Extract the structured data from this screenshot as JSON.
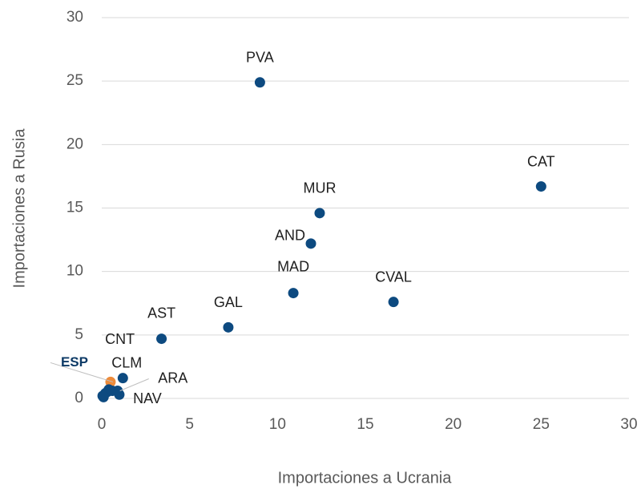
{
  "chart_data": {
    "type": "scatter",
    "x_label": "Importaciones a Ucrania",
    "y_label": "Importaciones a Rusia",
    "x": [
      9.0,
      25.0,
      12.4,
      11.9,
      10.9,
      16.6,
      7.2,
      3.4,
      0.3,
      1.2,
      0.5,
      0.9,
      1.0,
      0.1,
      0.2,
      0.4,
      0.6,
      0.05
    ],
    "y": [
      24.9,
      16.7,
      14.6,
      12.2,
      8.3,
      7.6,
      5.6,
      4.7,
      0.5,
      1.6,
      1.3,
      0.6,
      0.3,
      0.1,
      0.4,
      0.7,
      0.6,
      0.2
    ],
    "labels": [
      "PVA",
      "CAT",
      "MUR",
      "AND",
      "MAD",
      "CVAL",
      "GAL",
      "AST",
      "CNT",
      "CLM",
      "ESP",
      "ARA",
      "NAV",
      null,
      null,
      null,
      null,
      null
    ],
    "colors": [
      "#0d4a80",
      "#0d4a80",
      "#0d4a80",
      "#0d4a80",
      "#0d4a80",
      "#0d4a80",
      "#0d4a80",
      "#0d4a80",
      "#0d4a80",
      "#0d4a80",
      "#ed8b3a",
      "#0d4a80",
      "#0d4a80",
      "#0d4a80",
      "#0d4a80",
      "#0d4a80",
      "#0d4a80",
      "#0d4a80"
    ],
    "xlim": [
      0,
      30
    ],
    "ylim": [
      0,
      30
    ],
    "xticks": [
      0,
      5,
      10,
      15,
      20,
      25,
      30
    ],
    "yticks": [
      0,
      5,
      10,
      15,
      20,
      25,
      30
    ],
    "grid": true
  }
}
